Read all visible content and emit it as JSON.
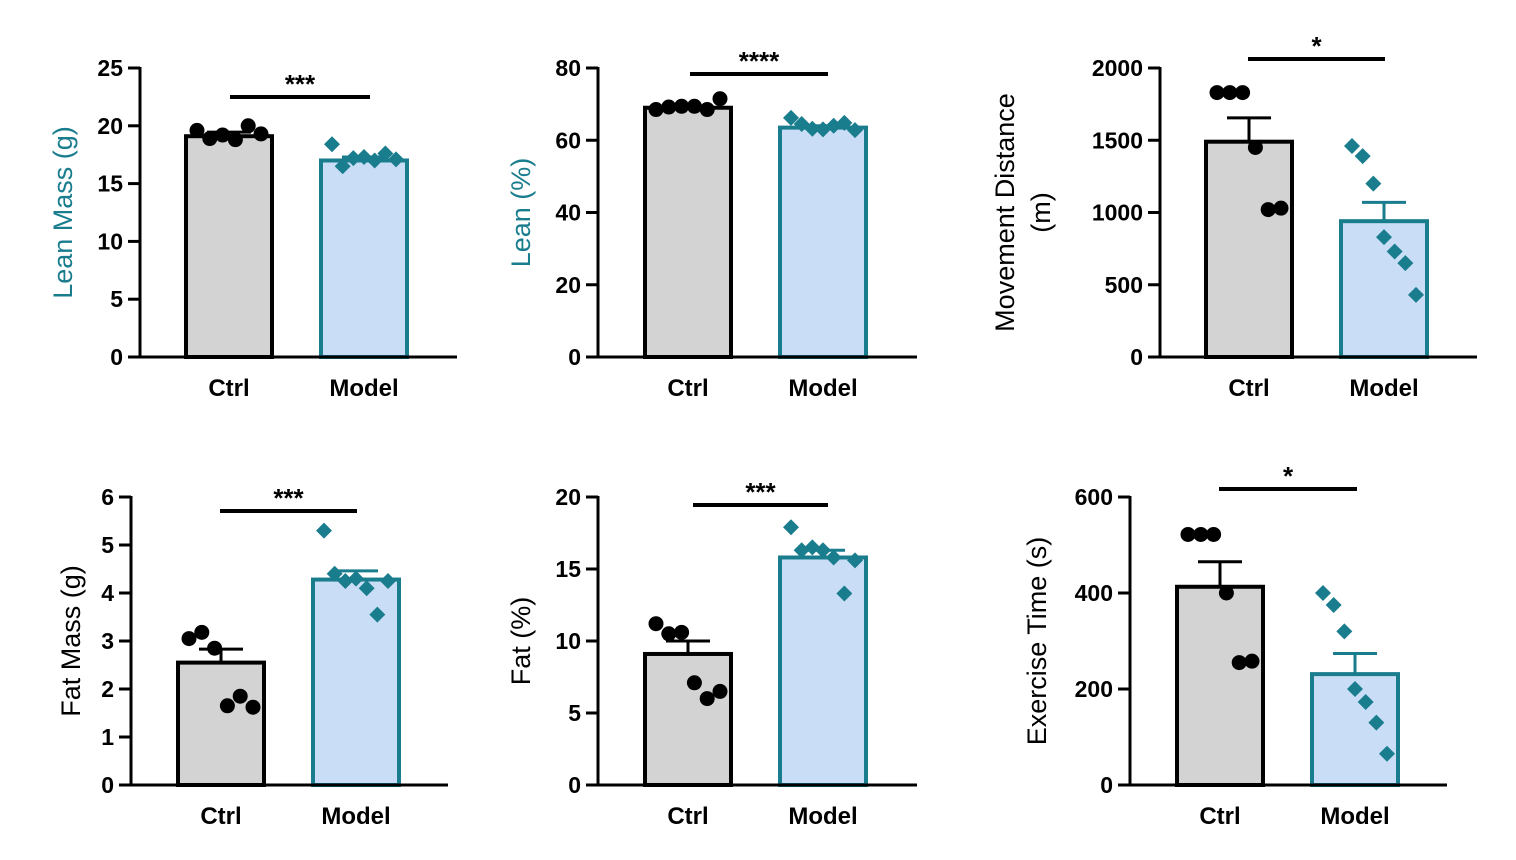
{
  "colors": {
    "ctrl_fill": "#d3d3d3",
    "ctrl_edge": "#000000",
    "model_fill": "#c9def6",
    "model_edge": "#1a7d8e",
    "axis": "#000000"
  },
  "chart_data": [
    {
      "type": "bar",
      "ylabel": "Lean Mass (g)",
      "ylabel_color": "#1a7d8e",
      "categories": [
        "Ctrl",
        "Model"
      ],
      "values": [
        19.1,
        17.0
      ],
      "sem": [
        0.35,
        0.3
      ],
      "points": [
        [
          19.6,
          18.9,
          19.2,
          18.8,
          20.0,
          19.3
        ],
        [
          18.4,
          16.5,
          17.2,
          17.3,
          17.0,
          17.6,
          17.1
        ]
      ],
      "ylim": [
        0,
        25
      ],
      "yticks": [
        0,
        5,
        10,
        15,
        20,
        25
      ],
      "significance": "***"
    },
    {
      "type": "bar",
      "ylabel": "Lean (%)",
      "ylabel_color": "#1a7d8e",
      "categories": [
        "Ctrl",
        "Model"
      ],
      "values": [
        69,
        63.5
      ],
      "sem": [
        0.4,
        0.5
      ],
      "points": [
        [
          68.5,
          69.2,
          69.4,
          69.4,
          68.5,
          71.5
        ],
        [
          66.2,
          64.5,
          63.2,
          63.0,
          64.0,
          64.8,
          62.8
        ]
      ],
      "ylim": [
        0,
        80
      ],
      "yticks": [
        0,
        20,
        40,
        60,
        80
      ],
      "significance": "****"
    },
    {
      "type": "bar",
      "ylabel": "Movement Distance (m)",
      "ylabel_color": "#000000",
      "categories": [
        "Ctrl",
        "Model"
      ],
      "values": [
        1490,
        940
      ],
      "sem": [
        165,
        130
      ],
      "points": [
        [
          1830,
          1830,
          1830,
          1450,
          1020,
          1030
        ],
        [
          1460,
          1390,
          1200,
          830,
          730,
          650,
          430
        ]
      ],
      "ylim": [
        0,
        2000
      ],
      "yticks": [
        0,
        500,
        1000,
        1500,
        2000
      ],
      "significance": "*"
    },
    {
      "type": "bar",
      "ylabel": "Fat Mass (g)",
      "ylabel_color": "#000000",
      "categories": [
        "Ctrl",
        "Model"
      ],
      "values": [
        2.55,
        4.28
      ],
      "sem": [
        0.28,
        0.18
      ],
      "points": [
        [
          3.05,
          3.18,
          2.85,
          1.65,
          1.85,
          1.62
        ],
        [
          5.3,
          4.4,
          4.25,
          4.3,
          4.1,
          3.55,
          4.25
        ]
      ],
      "ylim": [
        0,
        6
      ],
      "yticks": [
        0,
        1,
        2,
        3,
        4,
        5,
        6
      ],
      "significance": "***"
    },
    {
      "type": "bar",
      "ylabel": "Fat (%)",
      "ylabel_color": "#000000",
      "categories": [
        "Ctrl",
        "Model"
      ],
      "values": [
        9.1,
        15.8
      ],
      "sem": [
        0.9,
        0.5
      ],
      "points": [
        [
          11.2,
          10.5,
          10.6,
          7.1,
          6.0,
          6.5
        ],
        [
          17.9,
          16.3,
          16.5,
          16.3,
          15.8,
          13.3,
          15.6
        ]
      ],
      "ylim": [
        0,
        20
      ],
      "yticks": [
        0,
        5,
        10,
        15,
        20
      ],
      "significance": "***"
    },
    {
      "type": "bar",
      "ylabel": "Exercise Time (s)",
      "ylabel_color": "#000000",
      "categories": [
        "Ctrl",
        "Model"
      ],
      "values": [
        413,
        231
      ],
      "sem": [
        52,
        43
      ],
      "points": [
        [
          522,
          522,
          522,
          400,
          255,
          258
        ],
        [
          400,
          375,
          320,
          200,
          173,
          130,
          65
        ]
      ],
      "ylim": [
        0,
        600
      ],
      "yticks": [
        0,
        200,
        400,
        600
      ],
      "significance": "*"
    }
  ]
}
